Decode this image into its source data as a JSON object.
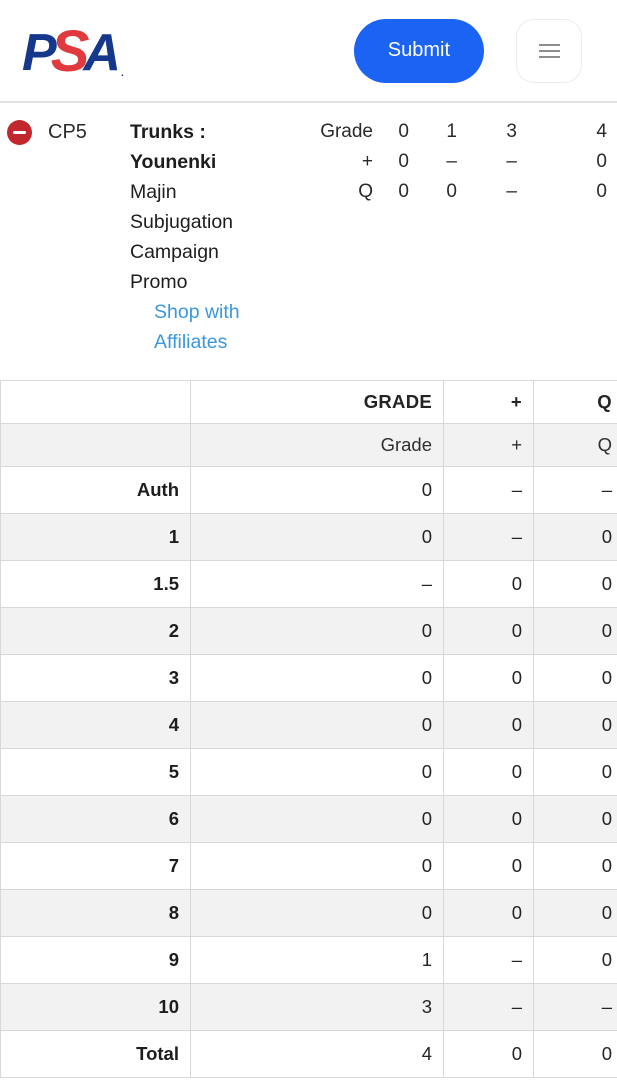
{
  "header": {
    "logo_letters": {
      "p": "P",
      "s": "S",
      "a": "A",
      "reg_mark": "."
    },
    "logo_name": "psa-logo",
    "submit_label": "Submit",
    "menu_icon": "hamburger-menu-icon"
  },
  "card": {
    "remove_icon": "minus-circle-icon",
    "spec_number": "CP5",
    "title_bold": "Trunks : Younenki",
    "title_rest": "Majin Subjugation Campaign Promo",
    "affiliate_link": "Shop with Affiliates",
    "mini_table": {
      "rows": [
        {
          "label": "Grade",
          "values": [
            "0",
            "1",
            "3",
            "4"
          ]
        },
        {
          "label": "+",
          "values": [
            "0",
            "–",
            "–",
            "0"
          ]
        },
        {
          "label": "Q",
          "values": [
            "0",
            "0",
            "–",
            "0"
          ]
        }
      ]
    }
  },
  "grade_table": {
    "header_row_1": {
      "label": "",
      "grade": "GRADE",
      "plus": "+",
      "q": "Q"
    },
    "header_row_2": {
      "label": "",
      "grade": "Grade",
      "plus": "+",
      "q": "Q"
    },
    "rows": [
      {
        "label": "Auth",
        "grade": "0",
        "plus": "–",
        "q": "–"
      },
      {
        "label": "1",
        "grade": "0",
        "plus": "–",
        "q": "0"
      },
      {
        "label": "1.5",
        "grade": "–",
        "plus": "0",
        "q": "0"
      },
      {
        "label": "2",
        "grade": "0",
        "plus": "0",
        "q": "0"
      },
      {
        "label": "3",
        "grade": "0",
        "plus": "0",
        "q": "0"
      },
      {
        "label": "4",
        "grade": "0",
        "plus": "0",
        "q": "0"
      },
      {
        "label": "5",
        "grade": "0",
        "plus": "0",
        "q": "0"
      },
      {
        "label": "6",
        "grade": "0",
        "plus": "0",
        "q": "0"
      },
      {
        "label": "7",
        "grade": "0",
        "plus": "0",
        "q": "0"
      },
      {
        "label": "8",
        "grade": "0",
        "plus": "0",
        "q": "0"
      },
      {
        "label": "9",
        "grade": "1",
        "plus": "–",
        "q": "0"
      },
      {
        "label": "10",
        "grade": "3",
        "plus": "–",
        "q": "–"
      },
      {
        "label": "Total",
        "grade": "4",
        "plus": "0",
        "q": "0"
      }
    ]
  },
  "colors": {
    "submit_blue": "#1b63f2",
    "link_blue": "#3b97de",
    "remove_red": "#c1272d",
    "logo_navy": "#15388d",
    "logo_red": "#e03a3e",
    "row_alt_gray": "#f2f2f2",
    "border_gray": "#d8d8d8"
  }
}
